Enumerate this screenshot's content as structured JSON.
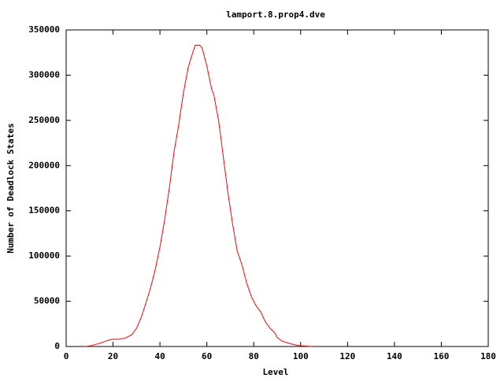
{
  "chart_data": {
    "type": "line",
    "title": "lamport.8.prop4.dve",
    "x_label": "Level",
    "y_label": "Number of Deadlock States",
    "x": [
      8,
      10,
      15,
      18,
      20,
      22,
      25,
      28,
      30,
      32,
      34,
      36,
      38,
      40,
      42,
      44,
      46,
      48,
      50,
      52,
      54,
      55,
      57,
      58,
      60,
      62,
      63,
      65,
      67,
      69,
      71,
      73,
      75,
      77,
      79,
      81,
      83,
      85,
      87,
      89,
      90,
      92,
      95,
      98,
      100,
      103,
      105
    ],
    "values": [
      0,
      500,
      4000,
      7000,
      8000,
      8000,
      9000,
      13000,
      20000,
      32000,
      48000,
      65000,
      85000,
      110000,
      140000,
      175000,
      215000,
      245000,
      280000,
      308000,
      325000,
      333000,
      333000,
      330000,
      310000,
      285000,
      278000,
      250000,
      210000,
      170000,
      135000,
      105000,
      90000,
      70000,
      55000,
      45000,
      38000,
      27000,
      20000,
      15000,
      10000,
      6000,
      3500,
      1500,
      800,
      300,
      0
    ],
    "color": "#ff0000",
    "xlim": [
      0,
      180
    ],
    "xticks": [
      0,
      20,
      40,
      60,
      80,
      100,
      120,
      140,
      160,
      180
    ],
    "ylim": [
      0,
      350000
    ],
    "yticks": [
      0,
      50000,
      100000,
      150000,
      200000,
      250000,
      300000,
      350000
    ]
  }
}
